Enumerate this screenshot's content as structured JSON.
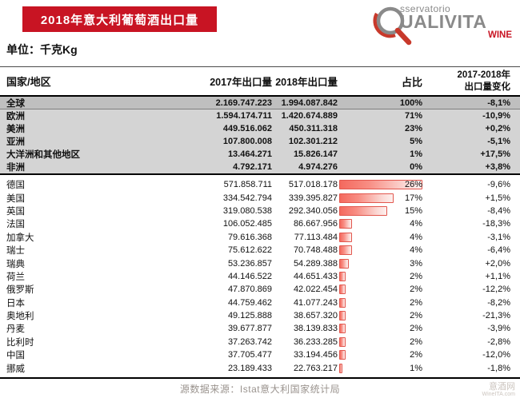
{
  "banner": {
    "title": "2018年意大利葡萄酒出口量"
  },
  "logo": {
    "osservatorio_suffix": "sservatorio",
    "qualivita_suffix": "UALIVITA",
    "wine": "WINE"
  },
  "unit_label": "单位：千克Kg",
  "table": {
    "columns": {
      "name": "国家/地区",
      "y2017": "2017年出口量",
      "y2018": "2018年出口量",
      "share": "占比",
      "change_line1": "2017-2018年",
      "change_line2": "出口量变化"
    },
    "regions": [
      {
        "name": "全球",
        "y2017": "2.169.747.223",
        "y2018": "1.994.087.842",
        "share": "100%",
        "change": "-8,1%"
      },
      {
        "name": "欧洲",
        "y2017": "1.594.174.711",
        "y2018": "1.420.674.889",
        "share": "71%",
        "change": "-10,9%"
      },
      {
        "name": "美洲",
        "y2017": "449.516.062",
        "y2018": "450.311.318",
        "share": "23%",
        "change": "+0,2%"
      },
      {
        "name": "亚洲",
        "y2017": "107.800.008",
        "y2018": "102.301.212",
        "share": "5%",
        "change": "-5,1%"
      },
      {
        "name": "大洋洲和其他地区",
        "y2017": "13.464.271",
        "y2018": "15.826.147",
        "share": "1%",
        "change": "+17,5%"
      },
      {
        "name": "非洲",
        "y2017": "4.792.171",
        "y2018": "4.974.276",
        "share": "0%",
        "change": "+3,8%"
      }
    ],
    "countries": [
      {
        "name": "德国",
        "y2017": "571.858.711",
        "y2018": "517.018.178",
        "share": "26%",
        "share_pct": 26,
        "change": "-9,6%"
      },
      {
        "name": "美国",
        "y2017": "334.542.794",
        "y2018": "339.395.827",
        "share": "17%",
        "share_pct": 17,
        "change": "+1,5%"
      },
      {
        "name": "英国",
        "y2017": "319.080.538",
        "y2018": "292.340.056",
        "share": "15%",
        "share_pct": 15,
        "change": "-8,4%"
      },
      {
        "name": "法国",
        "y2017": "106.052.485",
        "y2018": "86.667.956",
        "share": "4%",
        "share_pct": 4,
        "change": "-18,3%"
      },
      {
        "name": "加拿大",
        "y2017": "79.616.368",
        "y2018": "77.113.484",
        "share": "4%",
        "share_pct": 4,
        "change": "-3,1%"
      },
      {
        "name": "瑞士",
        "y2017": "75.612.622",
        "y2018": "70.748.488",
        "share": "4%",
        "share_pct": 4,
        "change": "-6,4%"
      },
      {
        "name": "瑞典",
        "y2017": "53.236.857",
        "y2018": "54.289.388",
        "share": "3%",
        "share_pct": 3,
        "change": "+2,0%"
      },
      {
        "name": "荷兰",
        "y2017": "44.146.522",
        "y2018": "44.651.433",
        "share": "2%",
        "share_pct": 2,
        "change": "+1,1%"
      },
      {
        "name": "俄罗斯",
        "y2017": "47.870.869",
        "y2018": "42.022.454",
        "share": "2%",
        "share_pct": 2,
        "change": "-12,2%"
      },
      {
        "name": "日本",
        "y2017": "44.759.462",
        "y2018": "41.077.243",
        "share": "2%",
        "share_pct": 2,
        "change": "-8,2%"
      },
      {
        "name": "奥地利",
        "y2017": "49.125.888",
        "y2018": "38.657.320",
        "share": "2%",
        "share_pct": 2,
        "change": "-21,3%"
      },
      {
        "name": "丹麦",
        "y2017": "39.677.877",
        "y2018": "38.139.833",
        "share": "2%",
        "share_pct": 2,
        "change": "-3,9%"
      },
      {
        "name": "比利时",
        "y2017": "37.263.742",
        "y2018": "36.233.285",
        "share": "2%",
        "share_pct": 2,
        "change": "-2,8%"
      },
      {
        "name": "中国",
        "y2017": "37.705.477",
        "y2018": "33.194.456",
        "share": "2%",
        "share_pct": 2,
        "change": "-12,0%"
      },
      {
        "name": "挪威",
        "y2017": "23.189.433",
        "y2018": "22.763.217",
        "share": "1%",
        "share_pct": 1,
        "change": "-1,8%"
      }
    ]
  },
  "footer": {
    "source": "源数据来源：Istat意大利国家统计局",
    "watermark_line1": "意酒网",
    "watermark_line2": "WineITA.com"
  },
  "colors": {
    "banner_red": "#c81423",
    "logo_gray": "#8a8a8a",
    "bar_border": "#e2574e",
    "bar_fill_start": "#f4695e",
    "bar_fill_end": "#fdf0ee",
    "global_row_bg": "#bfbfbf",
    "region_row_bg": "#d4d4d4",
    "source_text": "#9a938e",
    "watermark_text": "#ccc5bf"
  },
  "chart_data": {
    "type": "table",
    "title": "2018年意大利葡萄酒出口量",
    "unit": "千克Kg",
    "columns": [
      "国家/地区",
      "2017年出口量",
      "2018年出口量",
      "占比",
      "2017-2018年出口量变化"
    ],
    "rows": [
      [
        "全球",
        "2.169.747.223",
        "1.994.087.842",
        "100%",
        "-8,1%"
      ],
      [
        "欧洲",
        "1.594.174.711",
        "1.420.674.889",
        "71%",
        "-10,9%"
      ],
      [
        "美洲",
        "449.516.062",
        "450.311.318",
        "23%",
        "+0,2%"
      ],
      [
        "亚洲",
        "107.800.008",
        "102.301.212",
        "5%",
        "-5,1%"
      ],
      [
        "大洋洲和其他地区",
        "13.464.271",
        "15.826.147",
        "1%",
        "+17,5%"
      ],
      [
        "非洲",
        "4.792.171",
        "4.974.276",
        "0%",
        "+3,8%"
      ],
      [
        "德国",
        "571.858.711",
        "517.018.178",
        "26%",
        "-9,6%"
      ],
      [
        "美国",
        "334.542.794",
        "339.395.827",
        "17%",
        "+1,5%"
      ],
      [
        "英国",
        "319.080.538",
        "292.340.056",
        "15%",
        "-8,4%"
      ],
      [
        "法国",
        "106.052.485",
        "86.667.956",
        "4%",
        "-18,3%"
      ],
      [
        "加拿大",
        "79.616.368",
        "77.113.484",
        "4%",
        "-3,1%"
      ],
      [
        "瑞士",
        "75.612.622",
        "70.748.488",
        "4%",
        "-6,4%"
      ],
      [
        "瑞典",
        "53.236.857",
        "54.289.388",
        "3%",
        "+2,0%"
      ],
      [
        "荷兰",
        "44.146.522",
        "44.651.433",
        "2%",
        "+1,1%"
      ],
      [
        "俄罗斯",
        "47.870.869",
        "42.022.454",
        "2%",
        "-12,2%"
      ],
      [
        "日本",
        "44.759.462",
        "41.077.243",
        "2%",
        "-8,2%"
      ],
      [
        "奥地利",
        "49.125.888",
        "38.657.320",
        "2%",
        "-21,3%"
      ],
      [
        "丹麦",
        "39.677.877",
        "38.139.833",
        "2%",
        "-3,9%"
      ],
      [
        "比利时",
        "37.263.742",
        "36.233.285",
        "2%",
        "-2,8%"
      ],
      [
        "中国",
        "37.705.477",
        "33.194.456",
        "2%",
        "-12,0%"
      ],
      [
        "挪威",
        "23.189.433",
        "22.763.217",
        "1%",
        "-1,8%"
      ]
    ],
    "embedded_bar": {
      "type": "bar",
      "column": "占比",
      "categories": [
        "德国",
        "美国",
        "英国",
        "法国",
        "加拿大",
        "瑞士",
        "瑞典",
        "荷兰",
        "俄罗斯",
        "日本",
        "奥地利",
        "丹麦",
        "比利时",
        "中国",
        "挪威"
      ],
      "values": [
        26,
        17,
        15,
        4,
        4,
        4,
        3,
        2,
        2,
        2,
        2,
        2,
        2,
        2,
        1
      ],
      "value_unit": "%",
      "orientation": "horizontal"
    }
  }
}
